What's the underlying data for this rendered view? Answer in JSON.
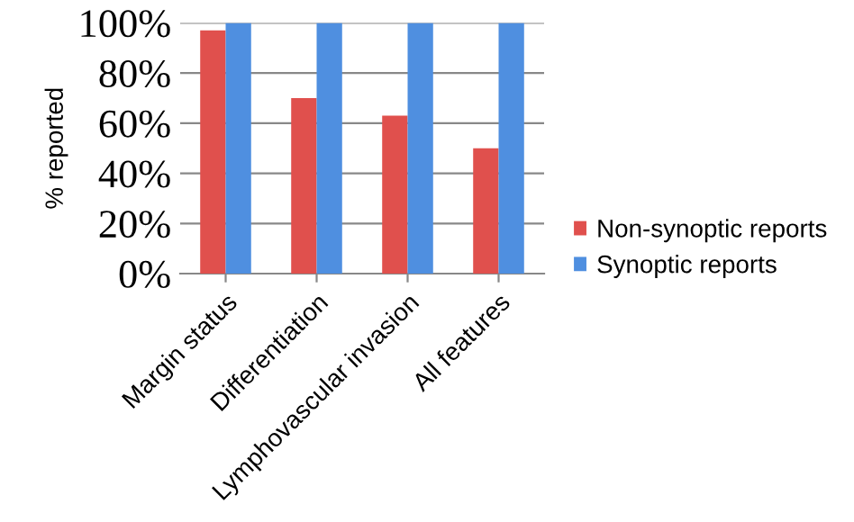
{
  "chart_data": {
    "type": "bar",
    "ylabel": "% reported",
    "categories": [
      "Margin status",
      "Differentiation",
      "Lymphovascular invasion",
      "All features"
    ],
    "series": [
      {
        "name": "Non-synoptic reports",
        "color": "#e0504d",
        "values": [
          97,
          70,
          63,
          50
        ]
      },
      {
        "name": "Synoptic reports",
        "color": "#4f8fe0",
        "values": [
          100,
          100,
          100,
          100
        ]
      }
    ],
    "ylim": [
      0,
      100
    ],
    "yticks": [
      {
        "value": 0,
        "label": "0%"
      },
      {
        "value": 20,
        "label": "20%"
      },
      {
        "value": 40,
        "label": "40%"
      },
      {
        "value": 60,
        "label": "60%"
      },
      {
        "value": 80,
        "label": "80%"
      },
      {
        "value": 100,
        "label": "100%"
      }
    ],
    "grid": "y",
    "legend": "right"
  }
}
